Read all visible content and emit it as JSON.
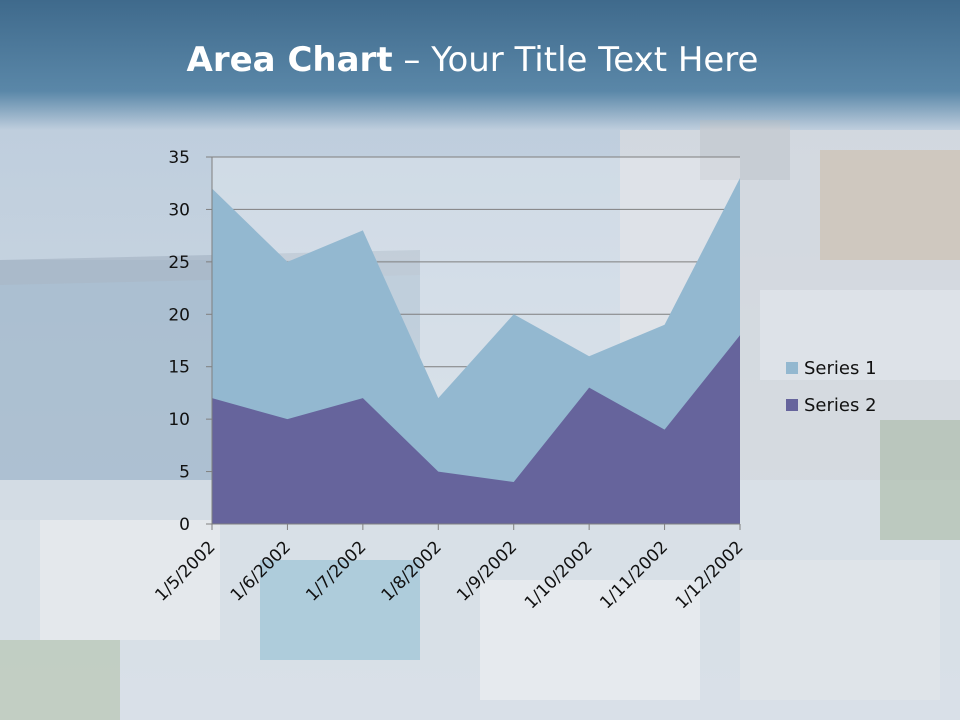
{
  "slide": {
    "title_bold": "Area Chart",
    "title_rest": " – Your Title Text Here"
  },
  "chart_data": {
    "type": "area",
    "stacked": false,
    "categories": [
      "1/5/2002",
      "1/6/2002",
      "1/7/2002",
      "1/8/2002",
      "1/9/2002",
      "1/10/2002",
      "1/11/2002",
      "1/12/2002"
    ],
    "series": [
      {
        "name": "Series 1",
        "values": [
          32,
          25,
          28,
          12,
          20,
          16,
          19,
          33
        ],
        "color": "#93b8d0"
      },
      {
        "name": "Series 2",
        "values": [
          12,
          10,
          12,
          5,
          4,
          13,
          9,
          18
        ],
        "color": "#66649c"
      }
    ],
    "ylim": [
      0,
      35
    ],
    "yticks": [
      "0",
      "5",
      "10",
      "15",
      "20",
      "25",
      "30",
      "35"
    ],
    "grid": true,
    "legend": "right"
  }
}
